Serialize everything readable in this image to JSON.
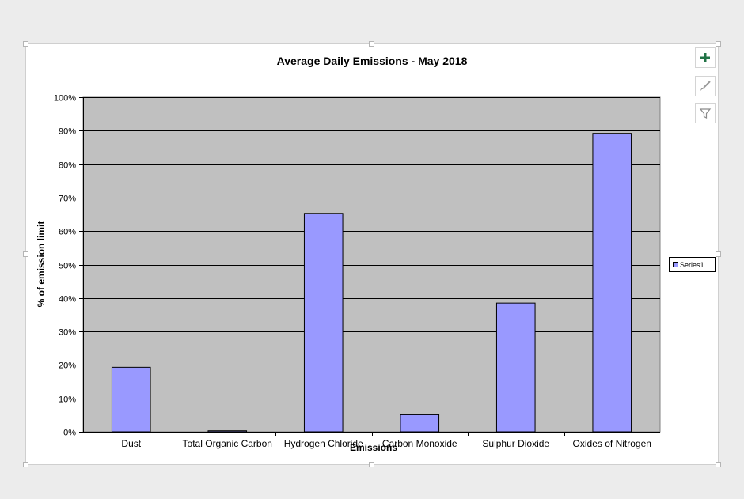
{
  "chart_data": {
    "type": "bar",
    "title": "Average Daily Emissions - May 2018",
    "xlabel": "Emissions",
    "ylabel": "% of emission limit",
    "categories": [
      "Dust",
      "Total Organic Carbon",
      "Hydrogen Chloride",
      "Carbon Monoxide",
      "Sulphur Dioxide",
      "Oxides of Nitrogen"
    ],
    "series": [
      {
        "name": "Series1",
        "values": [
          19.3,
          0.3,
          65.3,
          5.1,
          38.5,
          89.2
        ]
      }
    ],
    "ylim": [
      0,
      100
    ],
    "yticks": [
      "0%",
      "10%",
      "20%",
      "30%",
      "40%",
      "50%",
      "60%",
      "70%",
      "80%",
      "90%",
      "100%"
    ],
    "grid": true,
    "legend_position": "right",
    "colors": {
      "bar": "#9999ff",
      "plot_background": "#c0c0c0",
      "gridline": "#000000"
    }
  },
  "toolbar": {
    "chart_elements_icon": "plus-icon",
    "chart_styles_icon": "brush-icon",
    "chart_filters_icon": "filter-icon",
    "accent": "#217346"
  }
}
